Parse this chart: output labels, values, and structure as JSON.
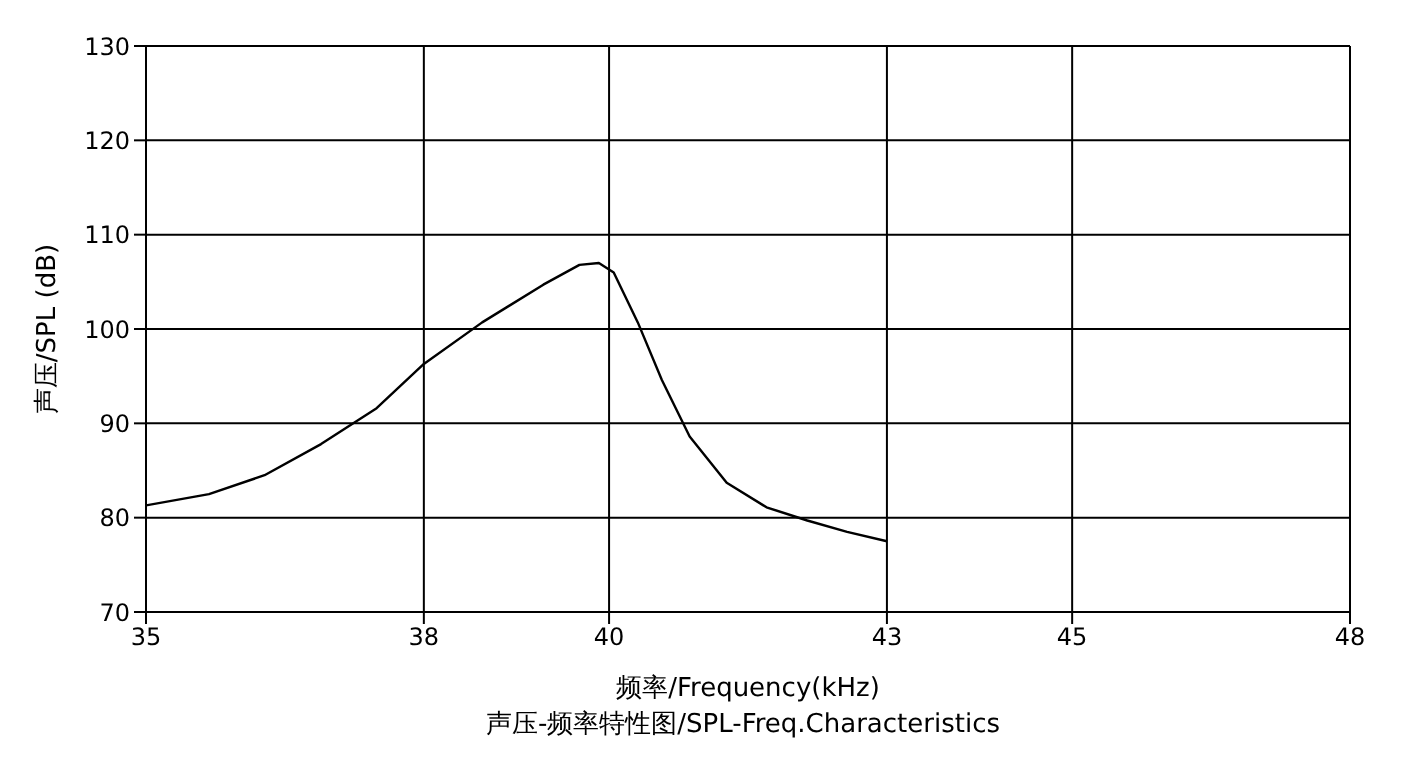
{
  "chart_data": {
    "type": "line",
    "title": "声压-频率特性图/SPL-Freq.Characteristics",
    "xlabel": "频率/Frequency(kHz)",
    "ylabel": "声压/SPL (dB)",
    "x": [
      35,
      35.68,
      36.28,
      36.89,
      37.49,
      38.0,
      38.63,
      39.29,
      39.68,
      39.89,
      40.05,
      40.31,
      40.57,
      40.87,
      41.27,
      41.7,
      42.14,
      42.57,
      43.0
    ],
    "series": [
      {
        "color": "#000000",
        "values": [
          81.3,
          82.5,
          84.5,
          87.8,
          91.6,
          96.3,
          100.7,
          104.7,
          106.8,
          107.0,
          106.0,
          100.7,
          94.6,
          88.6,
          83.7,
          81.1,
          79.7,
          78.5,
          77.5
        ]
      }
    ],
    "xlim": [
      35,
      48
    ],
    "xticks": [
      35,
      38,
      40,
      43,
      45,
      48
    ],
    "ylim": [
      70,
      130
    ],
    "yticks": [
      70,
      80,
      90,
      100,
      110,
      120,
      130
    ],
    "grid": true,
    "marker": "none",
    "line_style": "solid"
  }
}
